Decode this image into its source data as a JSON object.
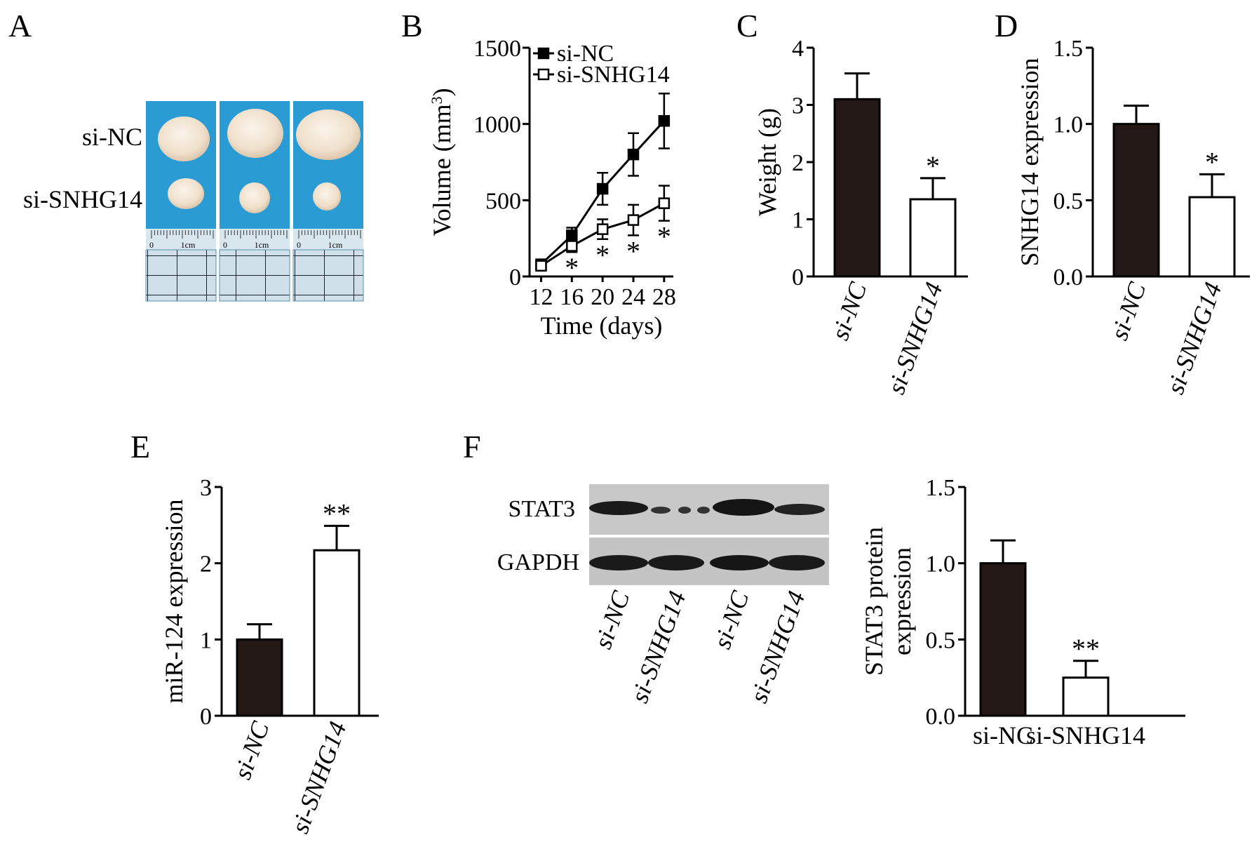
{
  "panel_letters": [
    "A",
    "B",
    "C",
    "D",
    "E",
    "F"
  ],
  "colors": {
    "dark_bar": "#231815",
    "open_bar": "#ffffff",
    "photo_background": "#2b9bd4",
    "tumor": "#f2e4d2"
  },
  "panel_a": {
    "row_labels": [
      "si-NC",
      "si-SNHG14"
    ],
    "ruler_marks": [
      "0",
      "1cm"
    ]
  },
  "panel_f_blot": {
    "row_labels": [
      "STAT3",
      "GAPDH"
    ],
    "lane_labels": [
      "si-NC",
      "si-SNHG14",
      "si-NC",
      "si-SNHG14"
    ]
  },
  "chart_data": [
    {
      "id": "B",
      "type": "line",
      "x": [
        12,
        16,
        20,
        24,
        28
      ],
      "xlabel": "Time (days)",
      "ylabel_main": "Volume (mm",
      "ylabel_sup": "3",
      "ylabel_end": ")",
      "ylim": [
        0,
        1500
      ],
      "yticks": [
        0,
        500,
        1000,
        1500
      ],
      "legend_position": "top",
      "series": [
        {
          "name": "si-NC",
          "marker": "filled-square",
          "values": [
            80,
            270,
            575,
            800,
            1020
          ],
          "errors": [
            20,
            50,
            105,
            140,
            180
          ]
        },
        {
          "name": "si-SNHG14",
          "marker": "open-square",
          "values": [
            70,
            200,
            310,
            370,
            480
          ],
          "errors": [
            15,
            40,
            65,
            100,
            115
          ]
        }
      ],
      "significance": [
        {
          "x": 16,
          "label": "*"
        },
        {
          "x": 20,
          "label": "*"
        },
        {
          "x": 24,
          "label": "*"
        },
        {
          "x": 28,
          "label": "*"
        }
      ]
    },
    {
      "id": "C",
      "type": "bar",
      "categories": [
        "si-NC",
        "si-SNHG14"
      ],
      "values": [
        3.1,
        1.35
      ],
      "errors": [
        0.45,
        0.37
      ],
      "ylabel": "Weight (g)",
      "ylim": [
        0,
        4
      ],
      "yticks": [
        "0",
        "1",
        "2",
        "3",
        "4"
      ],
      "significance": [
        "",
        "*"
      ]
    },
    {
      "id": "D",
      "type": "bar",
      "categories": [
        "si-NC",
        "si-SNHG14"
      ],
      "values": [
        1.0,
        0.52
      ],
      "errors": [
        0.12,
        0.15
      ],
      "ylabel": "SNHG14 expression",
      "ylim": [
        0,
        1.5
      ],
      "yticks": [
        "0.0",
        "0.5",
        "1.0",
        "1.5"
      ],
      "significance": [
        "",
        "*"
      ]
    },
    {
      "id": "E",
      "type": "bar",
      "categories": [
        "si-NC",
        "si-SNHG14"
      ],
      "values": [
        1.0,
        2.17
      ],
      "errors": [
        0.2,
        0.32
      ],
      "ylabel": "miR-124 expression",
      "ylim": [
        0,
        3
      ],
      "yticks": [
        "0",
        "1",
        "2",
        "3"
      ],
      "significance": [
        "",
        "**"
      ]
    },
    {
      "id": "F",
      "type": "bar",
      "categories": [
        "si-NC",
        "si-SNHG14"
      ],
      "values": [
        1.0,
        0.25
      ],
      "errors": [
        0.15,
        0.11
      ],
      "ylabel_lines": [
        "STAT3 protein",
        "expression"
      ],
      "ylim": [
        0,
        1.5
      ],
      "yticks": [
        "0.0",
        "0.5",
        "1.0",
        "1.5"
      ],
      "significance": [
        "",
        "**"
      ]
    }
  ]
}
